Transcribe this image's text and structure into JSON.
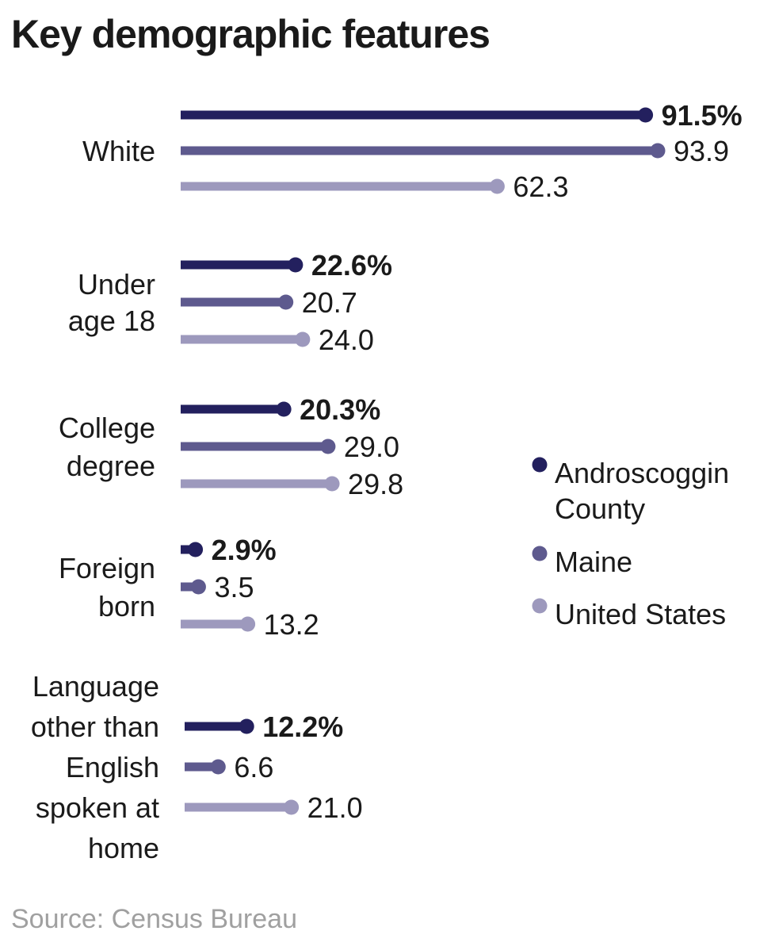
{
  "title": "Key demographic features",
  "source": "Source: Census Bureau",
  "chart_data": {
    "type": "bar",
    "title": "Key demographic features",
    "categories": [
      [
        "White"
      ],
      [
        "Under",
        "age 18"
      ],
      [
        "College",
        "degree"
      ],
      [
        "Foreign",
        "born"
      ],
      [
        "Language",
        "other than",
        "English",
        "spoken at",
        "home"
      ]
    ],
    "series": [
      {
        "name": "Androscoggin County",
        "legend_lines": [
          "Androscoggin",
          "County"
        ],
        "color": "#23205e",
        "values": [
          91.5,
          22.6,
          20.3,
          2.9,
          12.2
        ],
        "labels": [
          "91.5%",
          "22.6%",
          "20.3%",
          "2.9%",
          "12.2%"
        ]
      },
      {
        "name": "Maine",
        "legend_lines": [
          "Maine"
        ],
        "color": "#5e5a8e",
        "values": [
          93.9,
          20.7,
          29.0,
          3.5,
          6.6
        ],
        "labels": [
          "93.9",
          "20.7",
          "29.0",
          "3.5",
          "6.6"
        ]
      },
      {
        "name": "United States",
        "legend_lines": [
          "United States"
        ],
        "color": "#9d99bd",
        "values": [
          62.3,
          24.0,
          29.8,
          13.2,
          21.0
        ],
        "labels": [
          "62.3",
          "24.0",
          "29.8",
          "13.2",
          "21.0"
        ]
      }
    ],
    "xlim": [
      0,
      93.9
    ],
    "grid": false,
    "legend": "right"
  }
}
